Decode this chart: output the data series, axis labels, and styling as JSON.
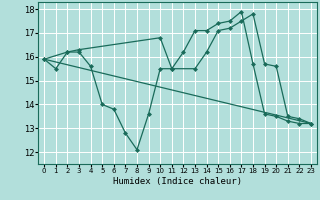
{
  "xlabel": "Humidex (Indice chaleur)",
  "bg_color": "#b2dfdb",
  "grid_color": "#ffffff",
  "line_color": "#1a6b5a",
  "line1": {
    "x": [
      0,
      1,
      2,
      3,
      4,
      5,
      6,
      7,
      8,
      9,
      10,
      11,
      12,
      13,
      14,
      15,
      16,
      17,
      18,
      19,
      20,
      21,
      22,
      23
    ],
    "y": [
      15.9,
      15.5,
      16.2,
      16.2,
      15.6,
      14.0,
      13.8,
      12.8,
      12.1,
      13.6,
      15.5,
      15.5,
      16.2,
      17.1,
      17.1,
      17.4,
      17.5,
      17.9,
      15.7,
      13.6,
      13.5,
      13.3,
      13.2,
      13.2
    ]
  },
  "line2": {
    "x": [
      0,
      2,
      3,
      10,
      11,
      13,
      14,
      15,
      16,
      17,
      18,
      19,
      20,
      21,
      22,
      23
    ],
    "y": [
      15.9,
      16.2,
      16.3,
      16.8,
      15.5,
      15.5,
      16.2,
      17.1,
      17.2,
      17.5,
      17.8,
      15.7,
      15.6,
      13.5,
      13.4,
      13.2
    ]
  },
  "line3": {
    "x": [
      0,
      23
    ],
    "y": [
      15.9,
      13.2
    ]
  },
  "xlim": [
    -0.5,
    23.5
  ],
  "ylim": [
    11.5,
    18.3
  ],
  "yticks": [
    12,
    13,
    14,
    15,
    16,
    17,
    18
  ],
  "xticks": [
    0,
    1,
    2,
    3,
    4,
    5,
    6,
    7,
    8,
    9,
    10,
    11,
    12,
    13,
    14,
    15,
    16,
    17,
    18,
    19,
    20,
    21,
    22,
    23
  ]
}
